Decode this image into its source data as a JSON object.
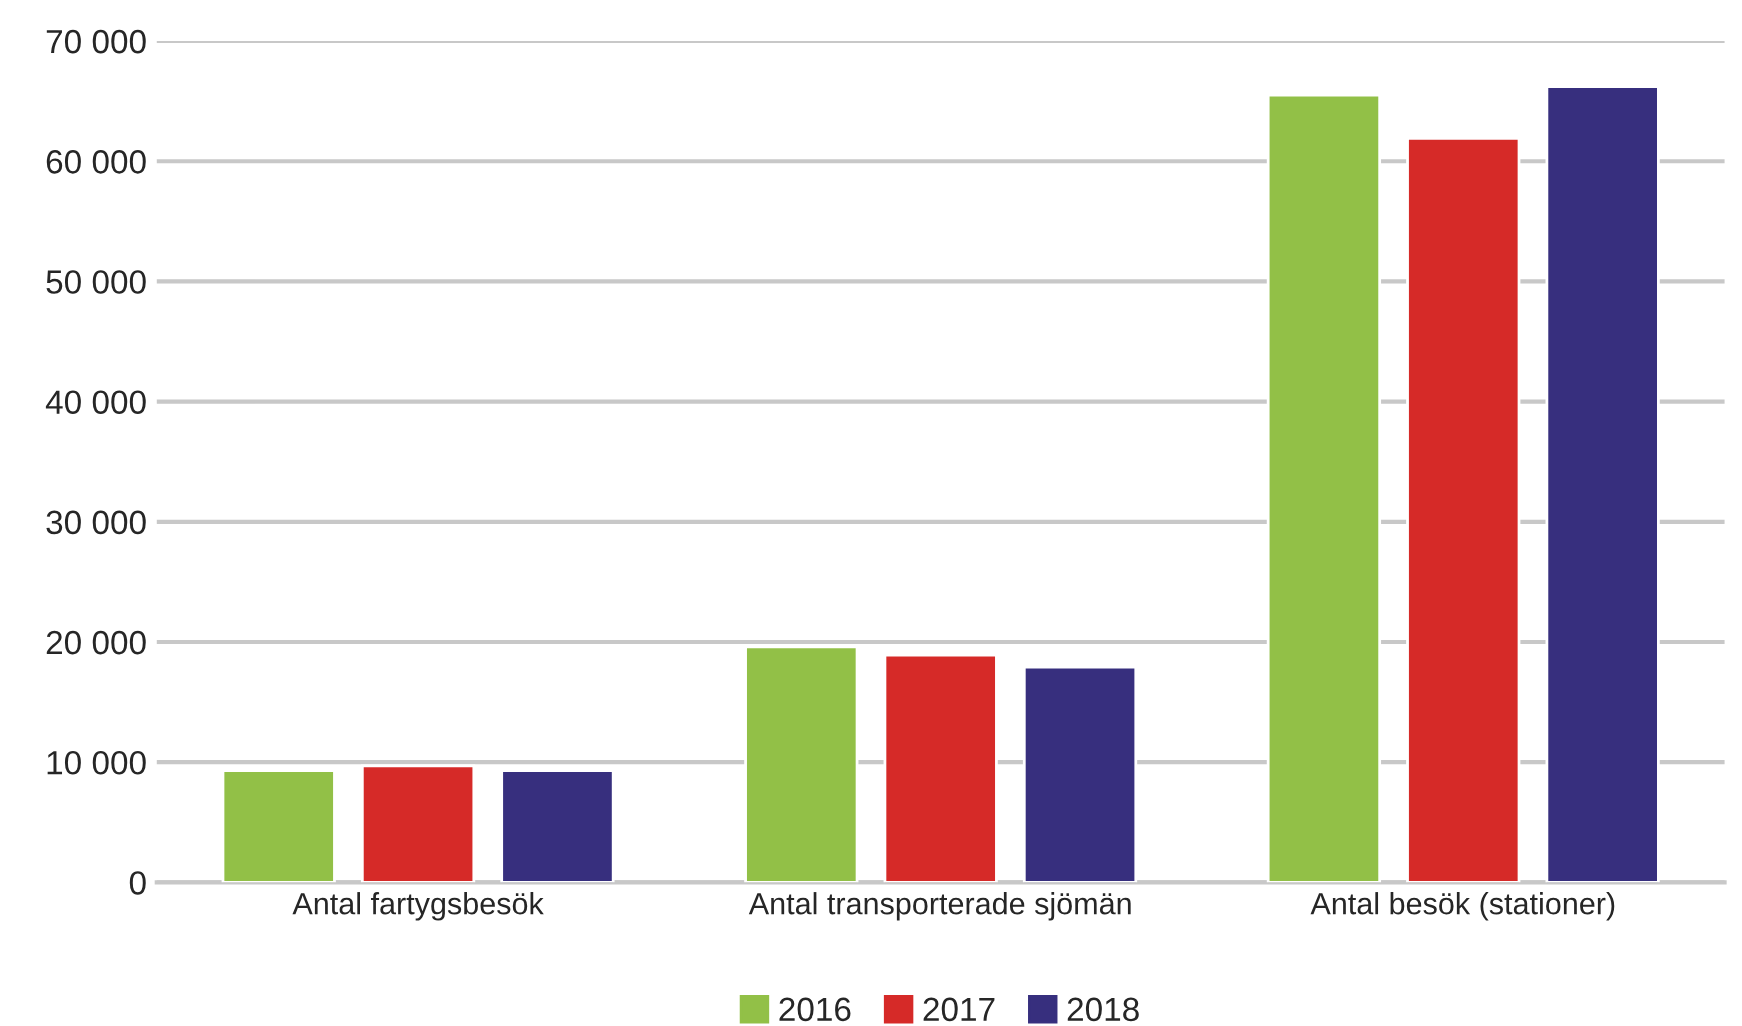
{
  "chart_data": {
    "type": "bar",
    "categories": [
      "Antal fartygsbesök",
      "Antal transporterade sjömän",
      "Antal besök (stationer)"
    ],
    "series": [
      {
        "name": "2016",
        "color": "#92c047",
        "values": [
          9300,
          19600,
          65500
        ]
      },
      {
        "name": "2017",
        "color": "#d62a28",
        "values": [
          9700,
          18900,
          61900
        ]
      },
      {
        "name": "2018",
        "color": "#372f7e",
        "values": [
          9300,
          17900,
          66200
        ]
      }
    ],
    "ylim": [
      0,
      70000
    ],
    "yticks": [
      {
        "value": 0,
        "label": "0"
      },
      {
        "value": 10000,
        "label": "10 000"
      },
      {
        "value": 20000,
        "label": "20 000"
      },
      {
        "value": 30000,
        "label": "30 000"
      },
      {
        "value": 40000,
        "label": "40 000"
      },
      {
        "value": 50000,
        "label": "50 000"
      },
      {
        "value": 60000,
        "label": "60 000"
      },
      {
        "value": 70000,
        "label": "70 000"
      }
    ],
    "grid": "y",
    "legend": "bottom"
  }
}
